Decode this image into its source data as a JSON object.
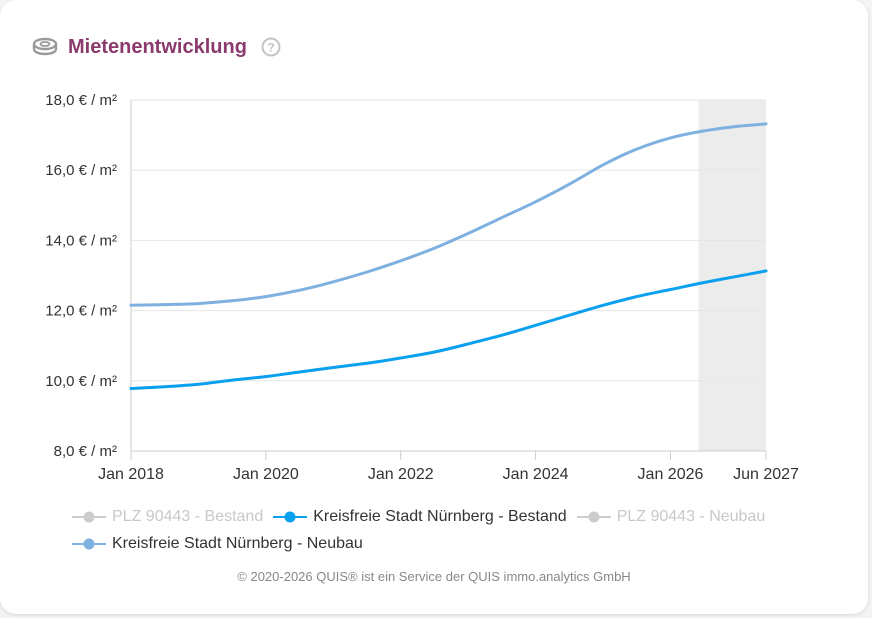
{
  "header": {
    "title": "Mietenentwicklung",
    "icon": "coins-icon",
    "help_icon": "help-circle-icon"
  },
  "chart_data": {
    "type": "line",
    "title": "Mietenentwicklung",
    "xlabel": "",
    "ylabel": "",
    "x_ticks": [
      "Jan 2018",
      "Jan 2020",
      "Jan 2022",
      "Jan 2024",
      "Jan 2026",
      "Jun 2027"
    ],
    "y_ticks": [
      "8,0 € / m²",
      "10,0 € / m²",
      "12,0 € / m²",
      "14,0 € / m²",
      "16,0 € / m²",
      "18,0 € / m²"
    ],
    "xlim": [
      "2018-01",
      "2027-06"
    ],
    "ylim": [
      8,
      18
    ],
    "grid": true,
    "forecast_region": {
      "from": "2026-06",
      "to": "2027-06",
      "color": "#ececec"
    },
    "series": [
      {
        "name": "Kreisfreie Stadt Nürnberg - Neubau",
        "color": "#7eb0e0",
        "points": [
          [
            "2018-01",
            12.15
          ],
          [
            "2018-07",
            12.17
          ],
          [
            "2019-01",
            12.2
          ],
          [
            "2019-07",
            12.28
          ],
          [
            "2020-01",
            12.4
          ],
          [
            "2020-07",
            12.58
          ],
          [
            "2021-01",
            12.82
          ],
          [
            "2021-07",
            13.1
          ],
          [
            "2022-01",
            13.42
          ],
          [
            "2022-07",
            13.78
          ],
          [
            "2023-01",
            14.2
          ],
          [
            "2023-07",
            14.65
          ],
          [
            "2024-01",
            15.1
          ],
          [
            "2024-07",
            15.6
          ],
          [
            "2025-01",
            16.15
          ],
          [
            "2025-07",
            16.6
          ],
          [
            "2026-01",
            16.92
          ],
          [
            "2026-07",
            17.12
          ],
          [
            "2027-01",
            17.25
          ],
          [
            "2027-06",
            17.32
          ]
        ]
      },
      {
        "name": "Kreisfreie Stadt Nürnberg - Bestand",
        "color": "#0aa0f0",
        "points": [
          [
            "2018-01",
            9.78
          ],
          [
            "2018-07",
            9.83
          ],
          [
            "2019-01",
            9.9
          ],
          [
            "2019-07",
            10.02
          ],
          [
            "2020-01",
            10.12
          ],
          [
            "2020-07",
            10.25
          ],
          [
            "2021-01",
            10.38
          ],
          [
            "2021-07",
            10.5
          ],
          [
            "2022-01",
            10.65
          ],
          [
            "2022-07",
            10.82
          ],
          [
            "2023-01",
            11.05
          ],
          [
            "2023-07",
            11.3
          ],
          [
            "2024-01",
            11.58
          ],
          [
            "2024-07",
            11.87
          ],
          [
            "2025-01",
            12.15
          ],
          [
            "2025-07",
            12.4
          ],
          [
            "2026-01",
            12.6
          ],
          [
            "2026-07",
            12.8
          ],
          [
            "2027-01",
            12.98
          ],
          [
            "2027-06",
            13.13
          ]
        ]
      }
    ]
  },
  "legend": [
    {
      "name": "PLZ 90443 - Bestand",
      "color": "#cccccc",
      "visible": false
    },
    {
      "name": "Kreisfreie Stadt Nürnberg - Bestand",
      "color": "#0aa0f0",
      "visible": true
    },
    {
      "name": "PLZ 90443 - Neubau",
      "color": "#cccccc",
      "visible": false
    },
    {
      "name": "Kreisfreie Stadt Nürnberg - Neubau",
      "color": "#7eb0e0",
      "visible": true
    }
  ],
  "footer": "© 2020-2026 QUIS® ist ein Service der QUIS immo.analytics GmbH"
}
